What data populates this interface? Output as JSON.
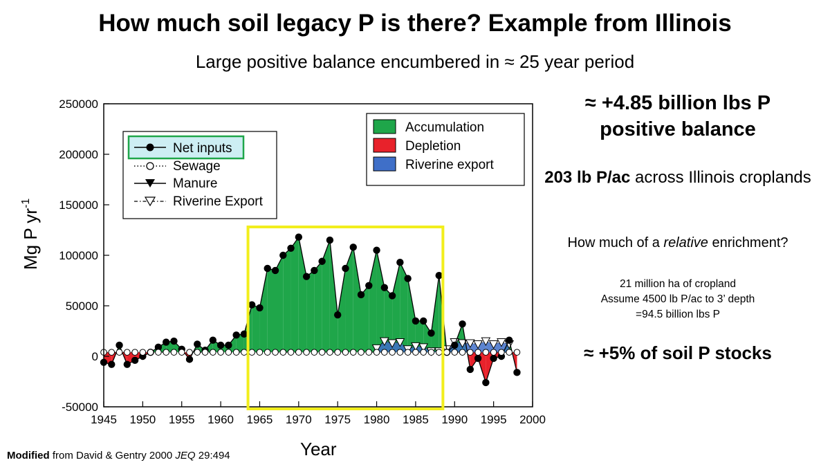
{
  "title": "How much soil legacy P is there? Example from Illinois",
  "subtitle": "Large positive balance encumbered in ≈ 25 year period",
  "sidebar": {
    "line1": "≈ +4.85 billion lbs P",
    "line2": "positive balance",
    "line3_bold": "203 lb P/ac",
    "line3_rest": " across Illinois croplands",
    "q_pre": "How much of a ",
    "q_em": "relative",
    "q_post": " enrichment?",
    "calc1": "21 million ha of cropland",
    "calc2": "Assume 4500 lb P/ac to 3’ depth",
    "calc3": "=94.5 billion lbs P",
    "conclusion": "≈  +5% of soil P stocks"
  },
  "caption": {
    "bold": "Modified",
    "pre": " from David & Gentry 2000 ",
    "em": "JEQ",
    "post": " 29:494"
  },
  "colors": {
    "accumulation": "#1fa64a",
    "depletion": "#e8222b",
    "riverine": "#3f6fc8",
    "highlight": "#f2ee1c"
  },
  "chart_data": {
    "type": "area",
    "xlabel": "Year",
    "ylabel": "Mg P yr",
    "ylabel_sup": "-1",
    "xlim": [
      1945,
      2000
    ],
    "ylim": [
      -50000,
      250000
    ],
    "xticks": [
      1945,
      1950,
      1955,
      1960,
      1965,
      1970,
      1975,
      1980,
      1985,
      1990,
      1995,
      2000
    ],
    "xtick_labels": [
      "1945",
      "1950",
      "1955",
      "1960",
      "1965",
      "1970",
      "1975",
      "1980",
      "1985",
      "1990",
      "1995",
      "2000"
    ],
    "yticks": [
      -50000,
      0,
      50000,
      100000,
      150000,
      200000,
      250000
    ],
    "ytick_labels": [
      "-50000",
      "0",
      "50000",
      "100000",
      "150000",
      "200000",
      "250000"
    ],
    "legend_lines": [
      {
        "label": "Net inputs",
        "highlighted": true
      },
      {
        "label": "Sewage"
      },
      {
        "label": "Manure"
      },
      {
        "label": "Riverine Export"
      }
    ],
    "legend_areas": [
      "Accumulation",
      "Depletion",
      "Riverine export"
    ],
    "highlight_range": [
      1963.5,
      1988.5
    ],
    "years": [
      1945,
      1946,
      1947,
      1948,
      1949,
      1950,
      1951,
      1952,
      1953,
      1954,
      1955,
      1956,
      1957,
      1958,
      1959,
      1960,
      1961,
      1962,
      1963,
      1964,
      1965,
      1966,
      1967,
      1968,
      1969,
      1970,
      1971,
      1972,
      1973,
      1974,
      1975,
      1976,
      1977,
      1978,
      1979,
      1980,
      1981,
      1982,
      1983,
      1984,
      1985,
      1986,
      1987,
      1988,
      1989,
      1990,
      1991,
      1992,
      1993,
      1994,
      1995,
      1996,
      1997,
      1998
    ],
    "series": [
      {
        "name": "Net inputs",
        "values": [
          -6000,
          -8000,
          11000,
          -8000,
          -4000,
          0,
          4000,
          9000,
          14000,
          15000,
          7000,
          -3000,
          12000,
          6000,
          16000,
          11000,
          11000,
          21000,
          22000,
          51000,
          48000,
          87000,
          85000,
          100000,
          107000,
          118000,
          79000,
          85000,
          94000,
          115000,
          41000,
          87000,
          108000,
          61000,
          70000,
          105000,
          68000,
          60000,
          93000,
          77000,
          35000,
          35000,
          23000,
          80000,
          4000,
          11000,
          32000,
          -13000,
          -2000,
          -26000,
          -2000,
          0,
          16000,
          -16000
        ]
      },
      {
        "name": "Sewage",
        "values": [
          4000,
          4000,
          4000,
          4000,
          4000,
          4000,
          4000,
          4000,
          4000,
          4000,
          4000,
          4000,
          4000,
          4000,
          4000,
          4000,
          4000,
          4000,
          4000,
          4000,
          4000,
          4000,
          4000,
          4000,
          4000,
          4000,
          4000,
          4000,
          4000,
          4000,
          4000,
          4000,
          4000,
          4000,
          4000,
          4000,
          4000,
          4000,
          4000,
          4000,
          4000,
          4000,
          4000,
          4000,
          4000,
          4000,
          4000,
          4000,
          4000,
          4000,
          4000,
          4000,
          4000,
          4000
        ]
      },
      {
        "name": "Riverine Export",
        "values": [
          null,
          null,
          null,
          null,
          null,
          null,
          null,
          null,
          null,
          null,
          null,
          null,
          null,
          null,
          null,
          null,
          null,
          null,
          null,
          null,
          null,
          null,
          null,
          null,
          null,
          null,
          null,
          null,
          null,
          null,
          null,
          null,
          null,
          null,
          null,
          8000,
          15000,
          13000,
          14000,
          7000,
          10000,
          9000,
          5000,
          5000,
          7000,
          14000,
          13000,
          13000,
          12000,
          15000,
          12000,
          14000,
          12000,
          null
        ]
      }
    ]
  }
}
